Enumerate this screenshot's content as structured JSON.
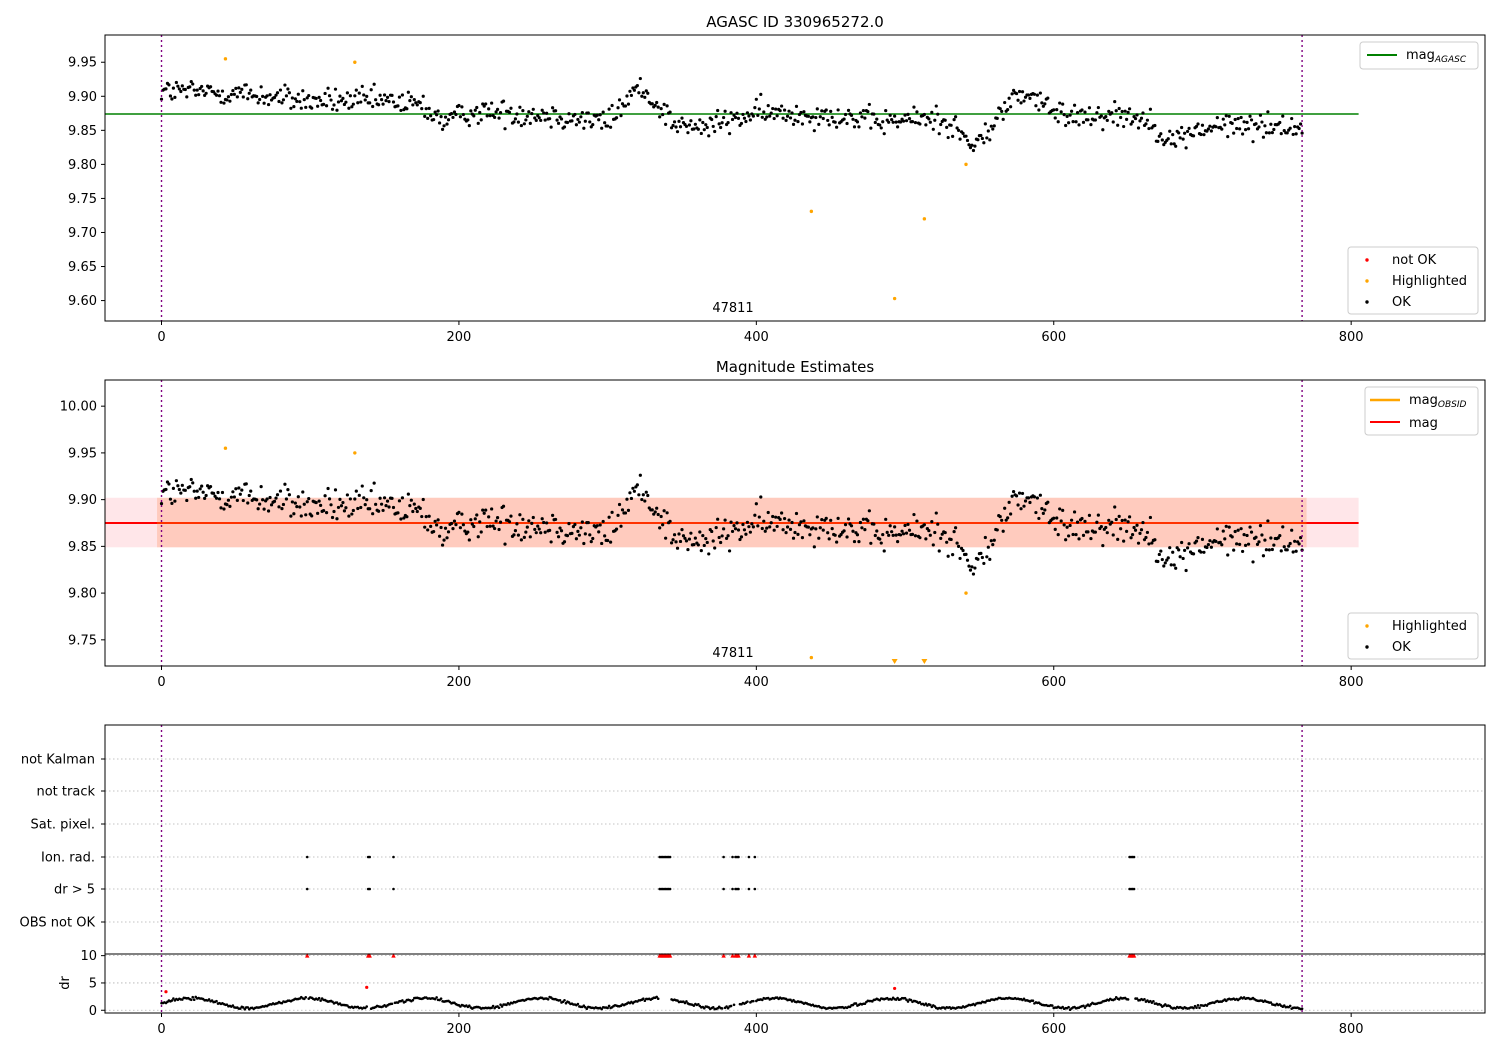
{
  "colors": {
    "ok": "#000000",
    "not_ok": "#ff0000",
    "highlighted": "#ffa500",
    "mag_agasc": "#008000",
    "mag": "#ff0000",
    "mag_obsid": "#ffa500",
    "obs_boundary": "#800080",
    "band_outer": "#ffb6c1",
    "band_inner": "#ffa07a"
  },
  "chart_data": [
    {
      "type": "scatter",
      "title": "AGASC ID 330965272.0",
      "xlim": [
        -38,
        890
      ],
      "ylim": [
        9.57,
        9.99
      ],
      "xticks": [
        0,
        200,
        400,
        600,
        800
      ],
      "yticks": [
        9.6,
        9.65,
        9.7,
        9.75,
        9.8,
        9.85,
        9.9,
        9.95
      ],
      "obs_boundaries": [
        0,
        767
      ],
      "obs_label": "47811",
      "obs_label_x": 384,
      "mag_agasc": 9.874,
      "mag_agasc_xrange": [
        -38,
        805
      ],
      "legend_lines": [
        {
          "name": "mag",
          "sub": "AGASC"
        }
      ],
      "legend_markers": [
        "not OK",
        "Highlighted",
        "OK"
      ],
      "highlighted_points": [
        [
          43,
          9.955
        ],
        [
          130,
          9.95
        ],
        [
          437,
          9.731
        ],
        [
          493,
          9.603
        ],
        [
          513,
          9.72
        ],
        [
          541,
          9.8
        ]
      ]
    },
    {
      "type": "scatter",
      "title": "Magnitude Estimates",
      "xlim": [
        -38,
        890
      ],
      "ylim": [
        9.722,
        10.028
      ],
      "xticks": [
        0,
        200,
        400,
        600,
        800
      ],
      "yticks": [
        9.75,
        9.8,
        9.85,
        9.9,
        9.95,
        10.0
      ],
      "obs_boundaries": [
        0,
        767
      ],
      "obs_label": "47811",
      "obs_label_x": 384,
      "mag": 9.875,
      "band_outer": [
        9.849,
        9.902
      ],
      "band_inner": [
        9.849,
        9.902
      ],
      "band_inner_xrange": [
        -3,
        770
      ],
      "band_outer_xrange": [
        -38,
        805
      ],
      "legend_lines": [
        {
          "name": "mag",
          "sub": "OBSID"
        },
        {
          "name": "mag",
          "sub": ""
        }
      ],
      "legend_markers": [
        "Highlighted",
        "OK"
      ],
      "highlighted_points": [
        [
          43,
          9.955
        ],
        [
          130,
          9.95
        ],
        [
          437,
          9.731
        ],
        [
          541,
          9.8
        ]
      ],
      "offscale_markers_x": [
        493,
        513
      ]
    },
    {
      "type": "scatter",
      "title": "",
      "xlim": [
        -38,
        890
      ],
      "xticks": [
        0,
        200,
        400,
        600,
        800
      ],
      "flag_rows": [
        "not Kalman",
        "not track",
        "Sat. pixel.",
        "Ion. rad.",
        "dr > 5",
        "OBS not OK"
      ],
      "flag_points": {
        "Ion. rad.": [
          98,
          139,
          140,
          156,
          335,
          336,
          337,
          338,
          339,
          340,
          341,
          342,
          378,
          384,
          386,
          387,
          388,
          395,
          399,
          651,
          652,
          653,
          654
        ],
        "dr > 5": [
          98,
          139,
          140,
          156,
          335,
          336,
          337,
          338,
          339,
          340,
          341,
          342,
          378,
          384,
          386,
          387,
          388,
          395,
          399,
          651,
          652,
          653,
          654
        ]
      },
      "dr_ylabel": "dr",
      "dr_ylim": [
        -0.5,
        10.3
      ],
      "dr_yticks": [
        0,
        5,
        10
      ],
      "dr_clipped_x": [
        98,
        139,
        140,
        156,
        335,
        336,
        337,
        338,
        339,
        340,
        341,
        342,
        378,
        384,
        386,
        387,
        388,
        395,
        399,
        651,
        652,
        653,
        654
      ],
      "dr_red_points": [
        [
          3,
          3.4
        ],
        [
          138,
          4.2
        ],
        [
          493,
          4.0
        ]
      ]
    }
  ]
}
